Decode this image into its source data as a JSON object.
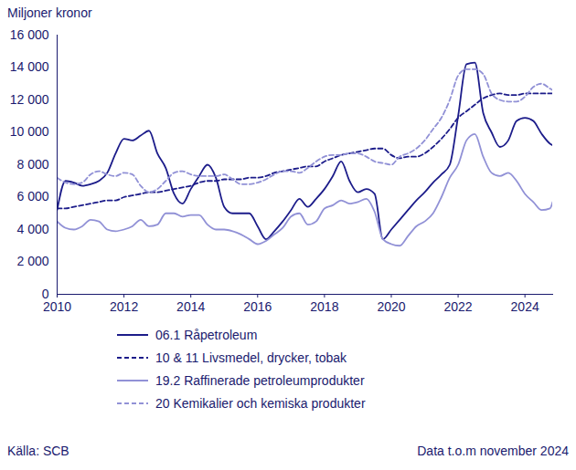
{
  "chart_data": {
    "type": "line",
    "y_label": "Miljoner kronor",
    "source": "Källa: SCB",
    "note": "Data t.o.m november 2024",
    "x": [
      2010,
      2010.25,
      2010.5,
      2010.75,
      2011,
      2011.25,
      2011.5,
      2011.75,
      2012,
      2012.25,
      2012.5,
      2012.75,
      2013,
      2013.25,
      2013.5,
      2013.75,
      2014,
      2014.25,
      2014.5,
      2014.75,
      2015,
      2015.25,
      2015.5,
      2015.75,
      2016,
      2016.25,
      2016.5,
      2016.75,
      2017,
      2017.25,
      2017.5,
      2017.75,
      2018,
      2018.25,
      2018.5,
      2018.75,
      2019,
      2019.25,
      2019.5,
      2019.75,
      2020,
      2020.25,
      2020.5,
      2020.75,
      2021,
      2021.25,
      2021.5,
      2021.75,
      2022,
      2022.25,
      2022.5,
      2022.75,
      2023,
      2023.25,
      2023.5,
      2023.75,
      2024,
      2024.25,
      2024.5,
      2024.75,
      2024.83
    ],
    "xlim": [
      2010,
      2024.83
    ],
    "xticks": [
      2010,
      2012,
      2014,
      2016,
      2018,
      2020,
      2022,
      2024
    ],
    "ylim": [
      0,
      16000
    ],
    "yticks": [
      0,
      {
        "value": 2000,
        "label": "2 000"
      },
      {
        "value": 4000,
        "label": "4 000"
      },
      {
        "value": 6000,
        "label": "6 000"
      },
      {
        "value": 8000,
        "label": "8 000"
      },
      {
        "value": 10000,
        "label": "10 000"
      },
      {
        "value": 12000,
        "label": "12 000"
      },
      {
        "value": 14000,
        "label": "14 000"
      },
      {
        "value": 16000,
        "label": "16 000"
      }
    ],
    "grid": false,
    "legend": "bottom",
    "series": [
      {
        "name": "06.1 Råpetroleum",
        "color": "#1c1c8a",
        "line_style": "solid",
        "values": [
          5200,
          7000,
          6900,
          6700,
          6800,
          7000,
          7500,
          8700,
          9600,
          9500,
          9800,
          10100,
          8700,
          7800,
          6200,
          5600,
          6500,
          7300,
          8000,
          7200,
          5400,
          5000,
          5000,
          5000,
          4200,
          3400,
          3900,
          4500,
          5200,
          5900,
          5400,
          5900,
          6500,
          7300,
          8200,
          7000,
          6300,
          6500,
          6200,
          3400,
          4000,
          4600,
          5200,
          5800,
          6300,
          6900,
          7400,
          8000,
          11000,
          14200,
          14300,
          11200,
          10000,
          9100,
          9500,
          10700,
          10900,
          10700,
          9900,
          9300,
          9200
        ]
      },
      {
        "name": "10 & 11 Livsmedel, drycker, tobak",
        "color": "#1c1c8a",
        "line_style": "dashed",
        "values": [
          5300,
          5300,
          5400,
          5500,
          5600,
          5700,
          5800,
          5800,
          6000,
          6100,
          6200,
          6300,
          6300,
          6400,
          6500,
          6600,
          6700,
          6900,
          7000,
          7000,
          7100,
          7100,
          7100,
          7200,
          7200,
          7300,
          7500,
          7600,
          7700,
          7800,
          7900,
          7900,
          8200,
          8400,
          8600,
          8700,
          8800,
          8900,
          9000,
          9000,
          8600,
          8400,
          8500,
          8500,
          8700,
          9100,
          9600,
          10200,
          10900,
          11300,
          11700,
          12100,
          12300,
          12400,
          12300,
          12300,
          12400,
          12400,
          12400,
          12400,
          12400
        ]
      },
      {
        "name": "19.2 Raffinerade petroleumprodukter",
        "color": "#9191d6",
        "line_style": "solid",
        "values": [
          4500,
          4100,
          4000,
          4200,
          4600,
          4500,
          4000,
          3900,
          4000,
          4200,
          4600,
          4200,
          4300,
          5000,
          5000,
          4800,
          4900,
          4900,
          4300,
          4000,
          4000,
          3900,
          3700,
          3400,
          3100,
          3300,
          3700,
          4100,
          4800,
          5000,
          4300,
          4500,
          5300,
          5500,
          5800,
          5600,
          5700,
          5900,
          5100,
          3400,
          3100,
          3000,
          3600,
          4200,
          4500,
          5000,
          6000,
          7200,
          8000,
          9500,
          9900,
          8500,
          7500,
          7300,
          7500,
          7000,
          6200,
          5700,
          5200,
          5300,
          5700
        ]
      },
      {
        "name": "20 Kemikalier och kemiska produkter",
        "color": "#9191d6",
        "line_style": "dashed",
        "values": [
          7200,
          6900,
          6800,
          6900,
          7400,
          7600,
          7400,
          7300,
          7500,
          7400,
          6700,
          6300,
          6500,
          7000,
          7500,
          7600,
          7400,
          7300,
          7300,
          7300,
          7400,
          7100,
          6800,
          6800,
          6900,
          7100,
          7400,
          7600,
          7600,
          7500,
          7800,
          8200,
          8500,
          8600,
          8600,
          8700,
          8700,
          8500,
          8200,
          8100,
          8000,
          8500,
          8700,
          9000,
          9500,
          10200,
          10900,
          12000,
          13500,
          13900,
          13900,
          13600,
          12400,
          12000,
          11900,
          11900,
          12200,
          12800,
          13000,
          12700,
          12600
        ]
      }
    ]
  }
}
